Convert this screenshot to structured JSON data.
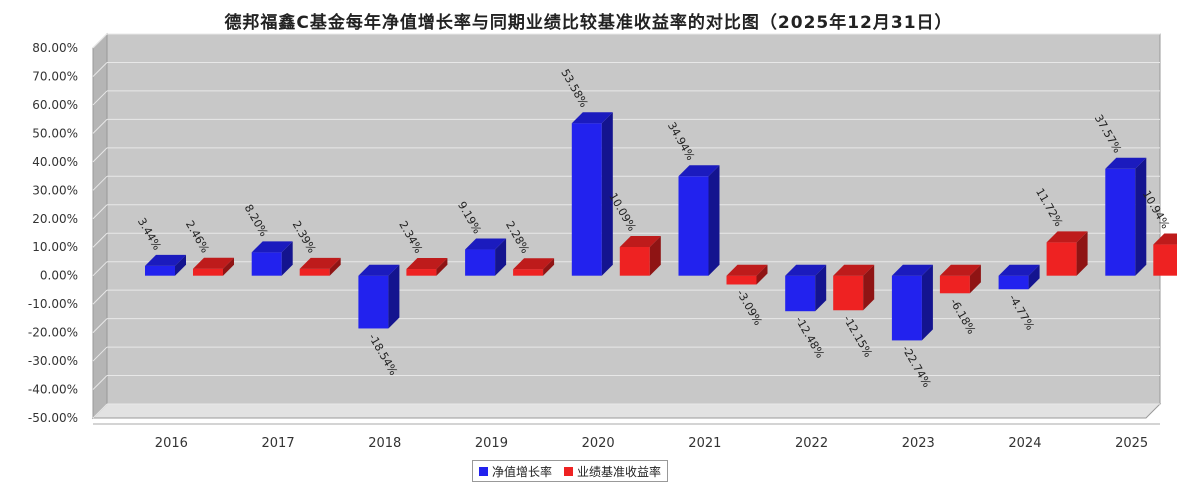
{
  "chart_data": {
    "type": "bar",
    "title": "德邦福鑫C基金每年净值增长率与同期业绩比较基准收益率的对比图（2025年12月31日）",
    "categories": [
      "2016",
      "2017",
      "2018",
      "2019",
      "2020",
      "2021",
      "2022",
      "2023",
      "2024",
      "2025"
    ],
    "series": [
      {
        "name": "净值增长率",
        "color": "#2222ee",
        "values": [
          3.44,
          8.2,
          -18.54,
          9.19,
          53.58,
          34.94,
          -12.48,
          -22.74,
          -4.77,
          37.57
        ],
        "labels": [
          "3.44%",
          "8.20%",
          "-18.54%",
          "9.19%",
          "53.58%",
          "34.94%",
          "-12.48%",
          "-22.74%",
          "-4.77%",
          "37.57%"
        ]
      },
      {
        "name": "业绩基准收益率",
        "color": "#ee2222",
        "values": [
          2.46,
          2.39,
          2.34,
          2.28,
          10.09,
          -3.09,
          -12.15,
          -6.18,
          11.72,
          10.94
        ],
        "labels": [
          "2.46%",
          "2.39%",
          "2.34%",
          "2.28%",
          "10.09%",
          "-3.09%",
          "-12.15%",
          "-6.18%",
          "11.72%",
          "10.94%"
        ]
      }
    ],
    "ylim": [
      -50,
      80
    ],
    "yticks": [
      "80.00%",
      "70.00%",
      "60.00%",
      "50.00%",
      "40.00%",
      "30.00%",
      "20.00%",
      "10.00%",
      "0.00%",
      "-10.00%",
      "-20.00%",
      "-30.00%",
      "-40.00%",
      "-50.00%"
    ],
    "grid": true,
    "legend_position": "bottom-center"
  }
}
